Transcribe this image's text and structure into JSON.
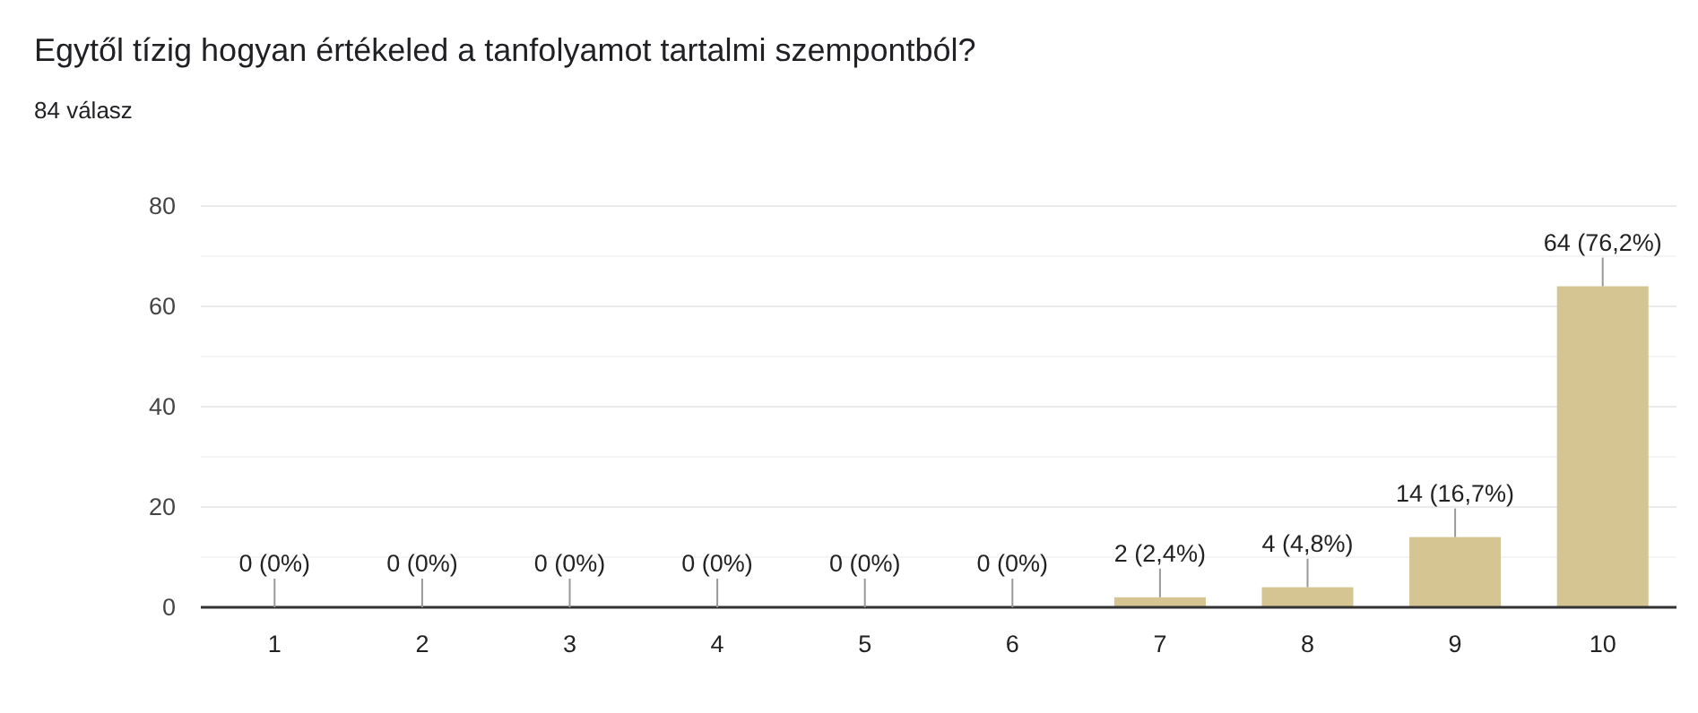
{
  "chart_data": {
    "type": "bar",
    "title": "Egytől tízig hogyan értékeled a tanfolyamot tartalmi szempontból?",
    "subtitle": "84 válasz",
    "categories": [
      "1",
      "2",
      "3",
      "4",
      "5",
      "6",
      "7",
      "8",
      "9",
      "10"
    ],
    "values": [
      0,
      0,
      0,
      0,
      0,
      0,
      2,
      4,
      14,
      64
    ],
    "value_labels": [
      "0 (0%)",
      "0 (0%)",
      "0 (0%)",
      "0 (0%)",
      "0 (0%)",
      "0 (0%)",
      "2 (2,4%)",
      "4 (4,8%)",
      "14 (16,7%)",
      "64 (76,2%)"
    ],
    "color": "#d5c592",
    "ylim": [
      0,
      80
    ],
    "yticks": [
      0,
      {
        "value": 10,
        "label": null
      },
      20,
      {
        "value": 30,
        "label": null
      },
      40,
      {
        "value": 50,
        "label": null
      },
      60,
      {
        "value": 70,
        "label": null
      },
      80
    ],
    "grid": true
  }
}
